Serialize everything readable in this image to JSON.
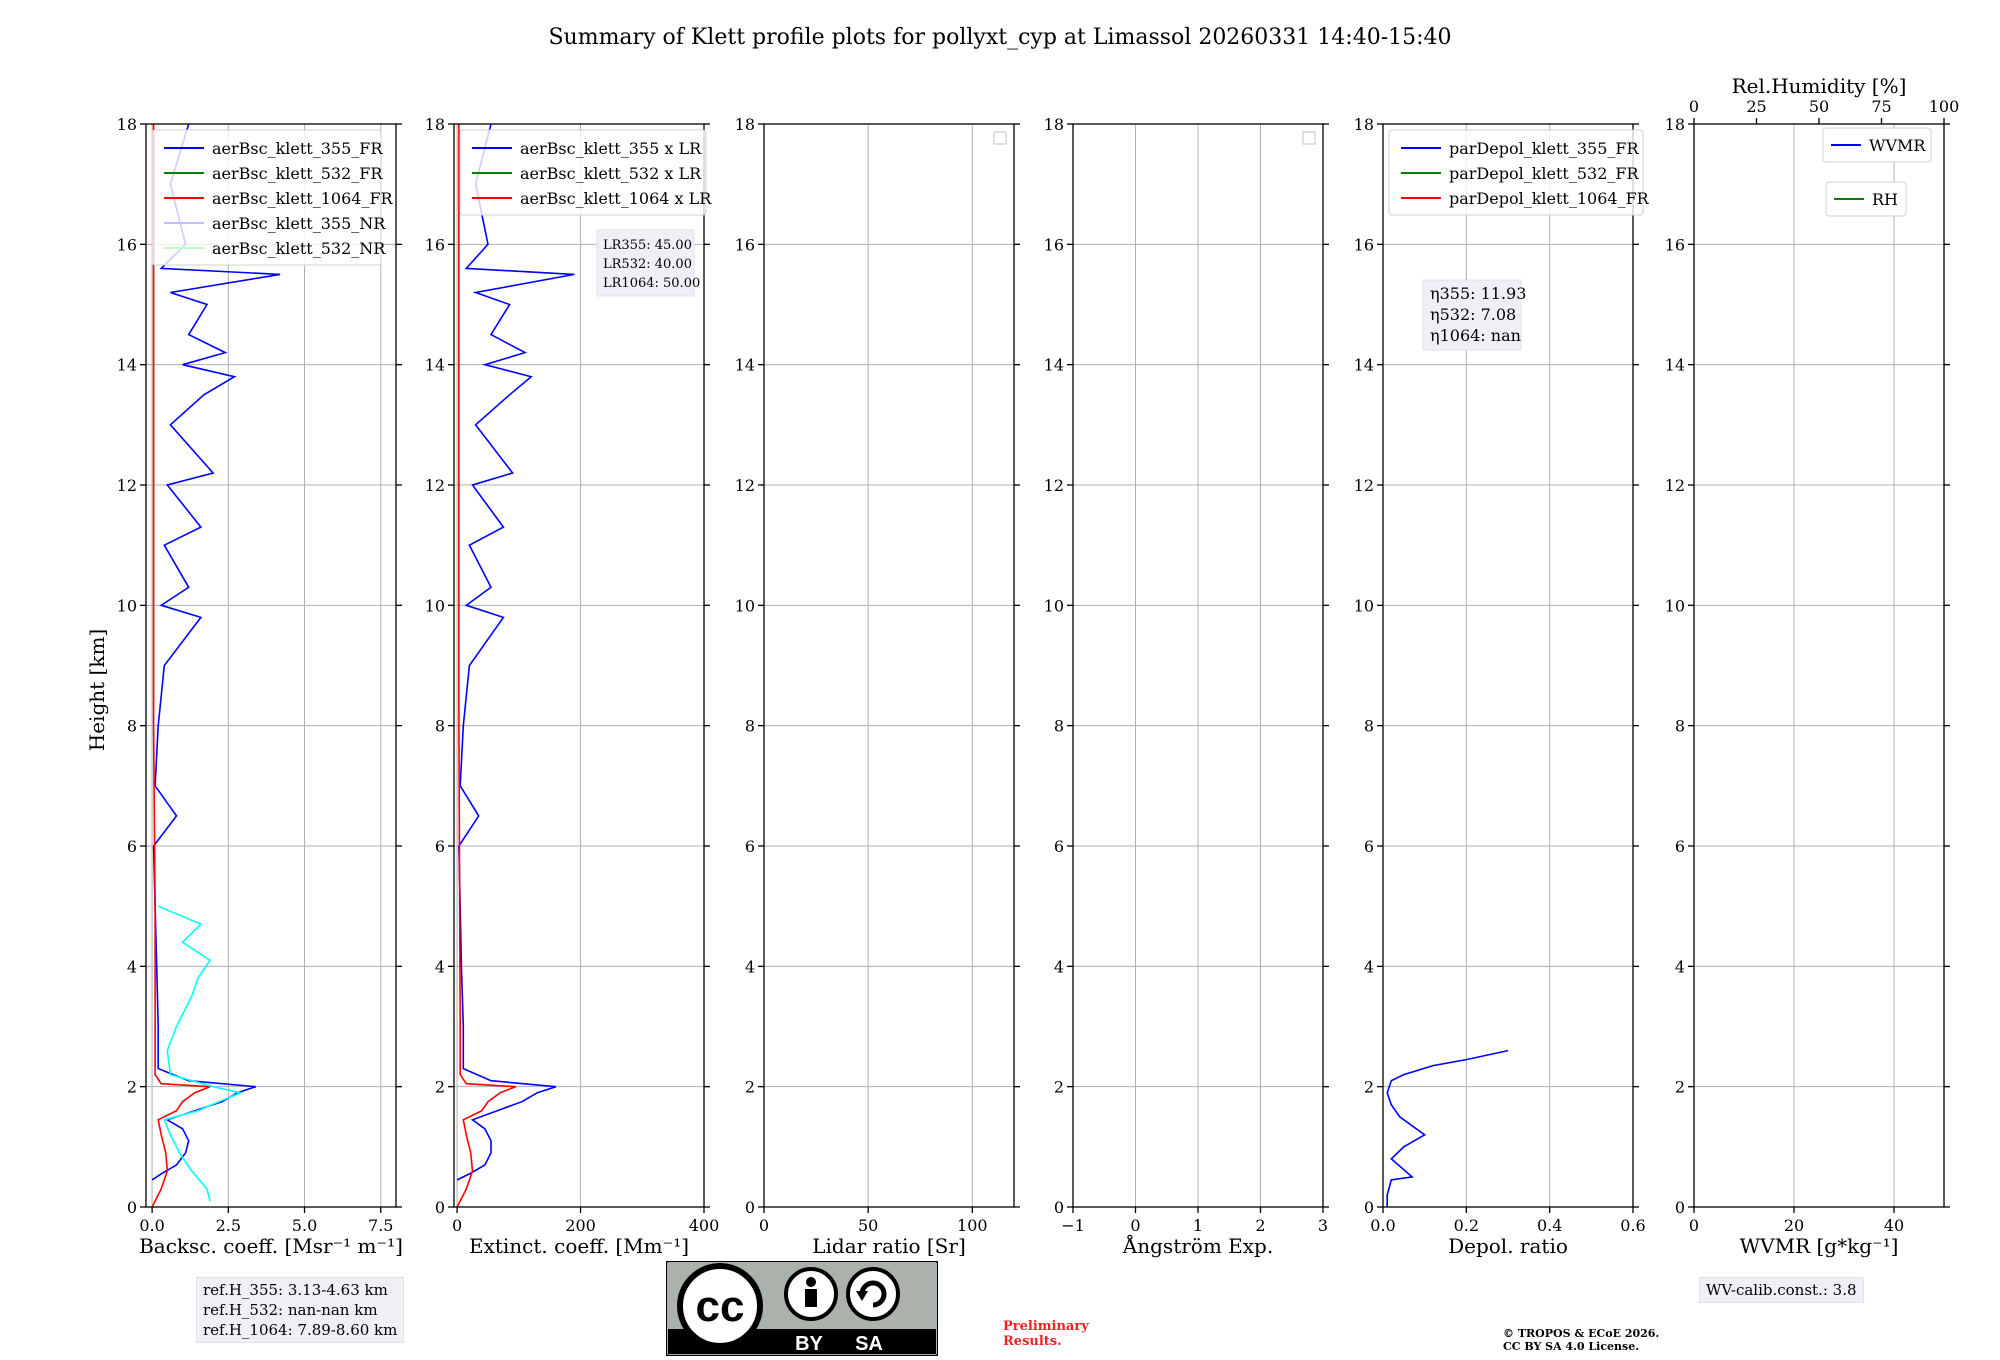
{
  "figure": {
    "title": "Summary of Klett profile plots for pollyxt_cyp at Limassol 20260331 14:40-15:40",
    "ylabel": "Height [km]",
    "ylim": [
      0,
      18
    ],
    "yticks": [
      "0",
      "2",
      "4",
      "6",
      "8",
      "10",
      "12",
      "14",
      "16",
      "18"
    ]
  },
  "chart_data": [
    {
      "type": "line",
      "xlabel": "Backsc. coeff. [Msr⁻¹ m⁻¹]",
      "xlim": [
        -0.2,
        8.0
      ],
      "xticks": [
        0,
        2.5,
        5.0,
        7.5
      ],
      "xtick_labels": [
        "0.0",
        "2.5",
        "5.0",
        "7.5"
      ],
      "legend": [
        {
          "label": "aerBsc_klett_355_FR",
          "color": "#0000ff"
        },
        {
          "label": "aerBsc_klett_532_FR",
          "color": "#008000"
        },
        {
          "label": "aerBsc_klett_1064_FR",
          "color": "#ff0000"
        },
        {
          "label": "aerBsc_klett_355_NR",
          "color": "#bfbfff"
        },
        {
          "label": "aerBsc_klett_532_NR",
          "color": "#bfffbf"
        }
      ],
      "series": [
        {
          "name": "aerBsc_klett_355_FR",
          "color": "#0000ff",
          "height_km": [
            0.45,
            0.55,
            0.7,
            0.9,
            1.1,
            1.3,
            1.45,
            1.6,
            1.75,
            1.9,
            2.0,
            2.1,
            2.3,
            3.0,
            4.0,
            5.0,
            6.0,
            6.5,
            7.0,
            8.0,
            9.0,
            9.8,
            10.0,
            10.3,
            11.0,
            11.3,
            12.0,
            12.2,
            13.0,
            13.5,
            13.8,
            14.0,
            14.2,
            14.5,
            15.0,
            15.2,
            15.5,
            15.6,
            16.0,
            17.0,
            18.0
          ],
          "values": [
            0.0,
            0.3,
            0.8,
            1.1,
            1.2,
            1.0,
            0.5,
            1.4,
            2.3,
            2.8,
            3.4,
            1.2,
            0.2,
            0.2,
            0.15,
            0.1,
            0.05,
            0.8,
            0.1,
            0.2,
            0.4,
            1.6,
            0.3,
            1.2,
            0.4,
            1.6,
            0.5,
            2.0,
            0.6,
            1.7,
            2.7,
            1.0,
            2.4,
            1.2,
            1.8,
            0.6,
            4.2,
            0.3,
            1.1,
            0.6,
            1.2
          ]
        },
        {
          "name": "aerBsc_klett_1064_FR",
          "color": "#ff0000",
          "height_km": [
            0.0,
            0.3,
            0.6,
            0.9,
            1.2,
            1.45,
            1.6,
            1.75,
            1.9,
            2.0,
            2.05,
            2.2,
            3.0,
            5.0,
            8.0,
            12.0,
            16.0,
            18.0
          ],
          "values": [
            0.0,
            0.3,
            0.5,
            0.45,
            0.3,
            0.2,
            0.8,
            1.0,
            1.4,
            1.9,
            0.3,
            0.1,
            0.1,
            0.1,
            0.05,
            0.05,
            0.05,
            0.05
          ]
        },
        {
          "name": "aerBsc_klett_355_NR",
          "color": "#00ffff",
          "height_km": [
            0.1,
            0.3,
            0.6,
            0.9,
            1.2,
            1.45,
            1.6,
            1.75,
            1.9,
            2.0,
            2.2,
            2.6,
            3.0,
            3.5,
            3.8,
            4.1,
            4.4,
            4.7,
            5.0
          ],
          "values": [
            1.9,
            1.8,
            1.3,
            0.9,
            0.6,
            0.4,
            1.5,
            2.2,
            2.9,
            2.0,
            0.6,
            0.5,
            0.8,
            1.3,
            1.5,
            1.9,
            1.0,
            1.6,
            0.2
          ]
        }
      ]
    },
    {
      "type": "line",
      "xlabel": "Extinct. coeff. [Mm⁻¹]",
      "xlim": [
        -5,
        400
      ],
      "xticks": [
        0,
        200,
        400
      ],
      "xtick_labels": [
        "0",
        "200",
        "400"
      ],
      "legend": [
        {
          "label": "aerBsc_klett_355 x LR",
          "color": "#0000ff"
        },
        {
          "label": "aerBsc_klett_532 x LR",
          "color": "#008000"
        },
        {
          "label": "aerBsc_klett_1064 x LR",
          "color": "#ff0000"
        }
      ],
      "annotations": [
        "LR355: 45.00",
        "LR532: 40.00",
        "LR1064: 50.00"
      ],
      "series": [
        {
          "name": "aerBsc_klett_355 x LR",
          "color": "#0000ff",
          "height_km": [
            0.45,
            0.55,
            0.7,
            0.9,
            1.1,
            1.3,
            1.45,
            1.6,
            1.75,
            1.9,
            2.0,
            2.1,
            2.3,
            3.0,
            4.0,
            5.0,
            6.0,
            6.5,
            7.0,
            8.0,
            9.0,
            9.8,
            10.0,
            10.3,
            11.0,
            11.3,
            12.0,
            12.2,
            13.0,
            13.5,
            13.8,
            14.0,
            14.2,
            14.5,
            15.0,
            15.2,
            15.5,
            15.6,
            16.0,
            17.0,
            18.0
          ],
          "values": [
            0,
            20,
            45,
            55,
            55,
            45,
            25,
            65,
            105,
            130,
            160,
            55,
            10,
            10,
            7,
            5,
            3,
            35,
            5,
            10,
            20,
            75,
            15,
            55,
            20,
            75,
            25,
            90,
            30,
            85,
            120,
            45,
            110,
            55,
            85,
            30,
            190,
            15,
            50,
            30,
            55
          ]
        },
        {
          "name": "aerBsc_klett_1064 x LR",
          "color": "#ff0000",
          "height_km": [
            0.0,
            0.3,
            0.6,
            0.9,
            1.2,
            1.45,
            1.6,
            1.75,
            1.9,
            2.0,
            2.05,
            2.2,
            3.0,
            8.0,
            18.0
          ],
          "values": [
            0,
            15,
            25,
            22,
            15,
            10,
            40,
            50,
            70,
            95,
            15,
            5,
            5,
            3,
            3
          ]
        }
      ]
    },
    {
      "type": "line",
      "xlabel": "Lidar ratio [Sr]",
      "xlim": [
        0,
        120
      ],
      "xticks": [
        0,
        50,
        100
      ],
      "xtick_labels": [
        "0",
        "50",
        "100"
      ],
      "legend": [],
      "series": []
    },
    {
      "type": "line",
      "xlabel": "Ångström Exp.",
      "xlim": [
        -1,
        3
      ],
      "xticks": [
        -1,
        0,
        1,
        2,
        3
      ],
      "xtick_labels": [
        "−1",
        "0",
        "1",
        "2",
        "3"
      ],
      "legend": [],
      "series": []
    },
    {
      "type": "line",
      "xlabel": "Depol. ratio",
      "xlim": [
        0,
        0.6
      ],
      "xticks": [
        0,
        0.2,
        0.4,
        0.6
      ],
      "xtick_labels": [
        "0.0",
        "0.2",
        "0.4",
        "0.6"
      ],
      "legend": [
        {
          "label": "parDepol_klett_355_FR",
          "color": "#0000ff"
        },
        {
          "label": "parDepol_klett_532_FR",
          "color": "#008000"
        },
        {
          "label": "parDepol_klett_1064_FR",
          "color": "#ff0000"
        }
      ],
      "annotations": [
        "η355: 11.93",
        "η532: 7.08",
        "η1064: nan"
      ],
      "series": [
        {
          "name": "parDepol_klett_355_FR",
          "color": "#0000ff",
          "height_km": [
            0.0,
            0.2,
            0.45,
            0.5,
            0.8,
            1.0,
            1.2,
            1.3,
            1.5,
            1.7,
            1.9,
            2.1,
            2.2,
            2.35,
            2.45,
            2.6
          ],
          "values": [
            0.01,
            0.01,
            0.02,
            0.07,
            0.02,
            0.05,
            0.1,
            0.08,
            0.04,
            0.02,
            0.01,
            0.02,
            0.05,
            0.12,
            0.2,
            0.3
          ]
        }
      ]
    },
    {
      "type": "line",
      "xlabel": "WVMR [g*kg⁻¹]",
      "xlim": [
        0,
        50
      ],
      "xticks": [
        0,
        20,
        40
      ],
      "xtick_labels": [
        "0",
        "20",
        "40"
      ],
      "top_xlabel": "Rel.Humidity [%]",
      "top_xlim": [
        0,
        100
      ],
      "top_xticks": [
        0,
        25,
        50,
        75,
        100
      ],
      "top_xtick_labels": [
        "0",
        "25",
        "50",
        "75",
        "100"
      ],
      "legend": [
        {
          "label": "WVMR",
          "color": "#0000ff"
        },
        {
          "label": "RH",
          "color": "#008000"
        }
      ],
      "series": []
    }
  ],
  "annotations": {
    "ref_heights": [
      "ref.H_355: 3.13-4.63 km",
      "ref.H_532: nan-nan km",
      "ref.H_1064: 7.89-8.60 km"
    ],
    "wv_calib": "WV-calib.const.: 3.8",
    "preliminary": [
      "Preliminary",
      "Results."
    ],
    "copyright": [
      "© TROPOS & ECoE 2026.",
      "CC BY SA 4.0 License."
    ],
    "license_badge": {
      "main": "cc",
      "by": "BY",
      "sa": "SA"
    }
  }
}
